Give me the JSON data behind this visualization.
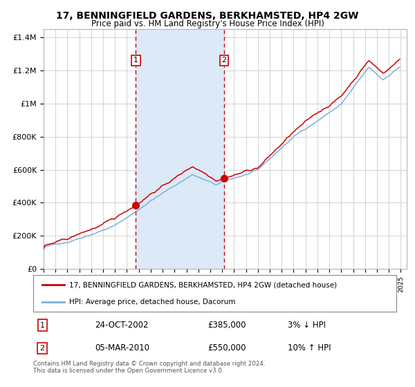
{
  "title": "17, BENNINGFIELD GARDENS, BERKHAMSTED, HP4 2GW",
  "subtitle": "Price paid vs. HM Land Registry's House Price Index (HPI)",
  "legend_line1": "17, BENNINGFIELD GARDENS, BERKHAMSTED, HP4 2GW (detached house)",
  "legend_line2": "HPI: Average price, detached house, Dacorum",
  "transaction1_date": "24-OCT-2002",
  "transaction1_price": 385000,
  "transaction1_label": "3% ↓ HPI",
  "transaction2_date": "05-MAR-2010",
  "transaction2_price": 550000,
  "transaction2_label": "10% ↑ HPI",
  "footer": "Contains HM Land Registry data © Crown copyright and database right 2024.\nThis data is licensed under the Open Government Licence v3.0.",
  "hpi_color": "#7ab0dc",
  "price_color": "#cc0000",
  "bg_color": "#ffffff",
  "plot_bg_color": "#ffffff",
  "grid_color": "#cccccc",
  "highlight_color": "#dce9f7",
  "ylim": [
    0,
    1450000
  ],
  "start_year": 1995,
  "end_year": 2025
}
